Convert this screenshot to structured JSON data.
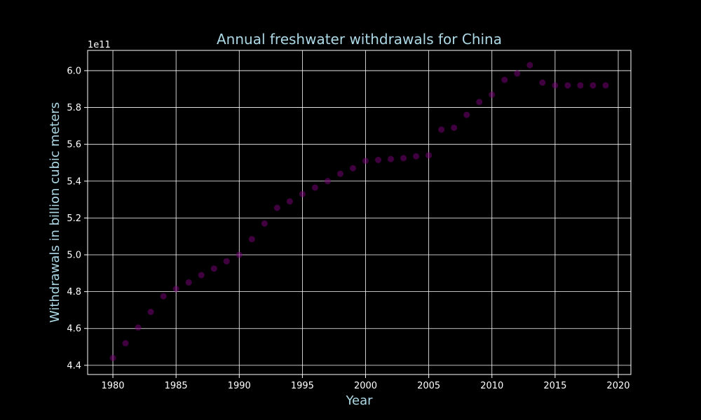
{
  "chart_data": {
    "type": "scatter",
    "title": "Annual freshwater withdrawals for China",
    "xlabel": "Year",
    "ylabel": "Withdrawals in billion cubic meters",
    "y_offset_label": "1e11",
    "xlim": [
      1978,
      2021
    ],
    "ylim": [
      4.35,
      6.11
    ],
    "x_ticks": [
      1980,
      1985,
      1990,
      1995,
      2000,
      2005,
      2010,
      2015,
      2020
    ],
    "x_tick_labels": [
      "1980",
      "1985",
      "1990",
      "1995",
      "2000",
      "2005",
      "2010",
      "2015",
      "2020"
    ],
    "y_ticks": [
      4.4,
      4.6,
      4.8,
      5.0,
      5.2,
      5.4,
      5.6,
      5.8,
      6.0
    ],
    "y_tick_labels": [
      "4.4",
      "4.6",
      "4.8",
      "5.0",
      "5.2",
      "5.4",
      "5.6",
      "5.8",
      "6.0"
    ],
    "grid": true,
    "series": [
      {
        "x": [
          1980,
          1981,
          1982,
          1983,
          1984,
          1985,
          1986,
          1987,
          1988,
          1989,
          1990,
          1991,
          1992,
          1993,
          1994,
          1995,
          1996,
          1997,
          1998,
          1999,
          2000,
          2001,
          2002,
          2003,
          2004,
          2005,
          2006,
          2007,
          2008,
          2009,
          2010,
          2011,
          2012,
          2013,
          2014,
          2015,
          2016,
          2017,
          2018,
          2019
        ],
        "y": [
          4.44,
          4.52,
          4.605,
          4.69,
          4.775,
          4.815,
          4.85,
          4.89,
          4.925,
          4.965,
          5.0,
          5.085,
          5.17,
          5.255,
          5.29,
          5.33,
          5.365,
          5.4,
          5.44,
          5.47,
          5.51,
          5.515,
          5.52,
          5.525,
          5.535,
          5.54,
          5.68,
          5.69,
          5.76,
          5.83,
          5.87,
          5.95,
          5.985,
          6.03,
          5.935,
          5.92,
          5.92,
          5.92,
          5.92,
          5.92
        ]
      }
    ]
  },
  "colors": {
    "background": "#000000",
    "title": "#add8e6",
    "axis_label": "#add8e6",
    "tick_label": "#ffffff",
    "grid": "#ffffff",
    "spine": "#ffffff",
    "marker": "#800080"
  }
}
